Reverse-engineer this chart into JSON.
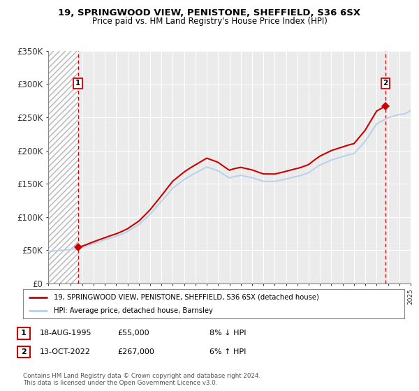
{
  "title_line1": "19, SPRINGWOOD VIEW, PENISTONE, SHEFFIELD, S36 6SX",
  "title_line2": "Price paid vs. HM Land Registry's House Price Index (HPI)",
  "legend_label1": "19, SPRINGWOOD VIEW, PENISTONE, SHEFFIELD, S36 6SX (detached house)",
  "legend_label2": "HPI: Average price, detached house, Barnsley",
  "transaction1": {
    "label": "1",
    "date": "18-AUG-1995",
    "price": "£55,000",
    "hpi": "8% ↓ HPI"
  },
  "transaction2": {
    "label": "2",
    "date": "13-OCT-2022",
    "price": "£267,000",
    "hpi": "6% ↑ HPI"
  },
  "footnote": "Contains HM Land Registry data © Crown copyright and database right 2024.\nThis data is licensed under the Open Government Licence v3.0.",
  "hpi_color": "#b8d0e8",
  "price_color": "#cc0000",
  "dashed_color": "#cc0000",
  "background_color": "#ffffff",
  "plot_bg_color": "#ebebeb",
  "ylim": [
    0,
    350000
  ],
  "yticks": [
    0,
    50000,
    100000,
    150000,
    200000,
    250000,
    300000,
    350000
  ],
  "ytick_labels": [
    "£0",
    "£50K",
    "£100K",
    "£150K",
    "£200K",
    "£250K",
    "£300K",
    "£350K"
  ],
  "year_start": 1993,
  "year_end": 2025,
  "transaction1_year": 1995.63,
  "transaction2_year": 2022.78,
  "transaction1_price": 55000,
  "transaction2_price": 267000
}
